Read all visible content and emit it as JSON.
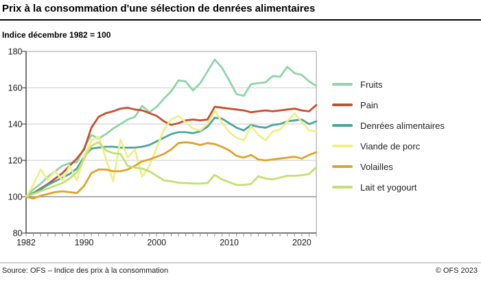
{
  "chart_data": {
    "type": "line",
    "title": "Prix à la consommation d'une sélection de denrées alimentaires",
    "subtitle": "Indice décembre 1982 = 100",
    "x_range": [
      1982,
      2022
    ],
    "x_step_years": 1,
    "x_ticks_labeled": [
      1982,
      1990,
      2000,
      2010,
      2020
    ],
    "ylim": [
      80,
      180
    ],
    "y_ticks": [
      80,
      100,
      120,
      140,
      160,
      180
    ],
    "baseline_value": 100,
    "grid": "horizontal",
    "legend_position": "right",
    "series": [
      {
        "name": "Fruits",
        "color": "#8fd4a8",
        "values": [
          100,
          104,
          107,
          111,
          114,
          117,
          118.5,
          119,
          127,
          134,
          132,
          134.5,
          137.5,
          140,
          142.5,
          144,
          150,
          146.5,
          149.5,
          154,
          158,
          164,
          163.5,
          158.5,
          162.5,
          169,
          175.5,
          171,
          164,
          156.5,
          155.5,
          162,
          162.5,
          163,
          166.5,
          166,
          171.5,
          168,
          167,
          163.5,
          161
        ]
      },
      {
        "name": "Pain",
        "color": "#c4502e",
        "values": [
          100,
          102,
          104.5,
          107,
          110,
          113,
          117,
          121,
          126,
          138,
          144,
          146,
          147,
          148.5,
          149,
          148,
          147.5,
          146,
          144.5,
          141.5,
          139.5,
          140.5,
          142,
          142.5,
          142,
          142.5,
          149.5,
          149,
          148.5,
          148,
          147.5,
          146.5,
          147,
          147.5,
          147,
          147.5,
          148,
          148.5,
          147.5,
          147,
          150.5
        ]
      },
      {
        "name": "Denrées alimentaires",
        "color": "#4ba59d",
        "values": [
          100,
          102,
          104,
          106.5,
          108.5,
          110.5,
          112.5,
          115.5,
          122,
          126.5,
          127,
          127.5,
          127.5,
          127,
          127,
          127,
          127.5,
          128.5,
          130.5,
          132.5,
          134.5,
          135.5,
          135.5,
          135,
          136,
          138.5,
          143.5,
          143,
          140.5,
          138,
          136.5,
          139.5,
          138.5,
          138,
          139.5,
          140,
          141.5,
          142,
          142.5,
          140,
          141.5
        ]
      },
      {
        "name": "Viande de porc",
        "color": "#eef089",
        "values": [
          100,
          106.5,
          115,
          109.5,
          114,
          109,
          117,
          109,
          122,
          131,
          133,
          121,
          108.5,
          131.5,
          121.5,
          126,
          111,
          117,
          127,
          137,
          142.5,
          144.5,
          141,
          137.5,
          136.5,
          140,
          147.5,
          141,
          135.5,
          132.5,
          131,
          139,
          134,
          131,
          136,
          137,
          141.5,
          146,
          141,
          136.5,
          136
        ]
      },
      {
        "name": "Volailles",
        "color": "#dda32b",
        "values": [
          100,
          99,
          100.5,
          101.5,
          102.5,
          103,
          102.5,
          102,
          106,
          113,
          115,
          115,
          114,
          114,
          115,
          117,
          119.5,
          120.5,
          122,
          123.5,
          126,
          129.5,
          130,
          129.5,
          128.5,
          129.5,
          129,
          127.5,
          125.5,
          122.5,
          121.5,
          123,
          120.5,
          120,
          120.5,
          121,
          121.5,
          122,
          121,
          123,
          124.5
        ]
      },
      {
        "name": "Lait et yogourt",
        "color": "#c4df6e",
        "values": [
          100,
          101.5,
          103,
          104.5,
          106,
          107.5,
          110,
          113.5,
          121,
          128,
          130,
          125.5,
          124,
          123.5,
          117,
          116,
          115.5,
          114,
          111.5,
          109,
          108.5,
          107.7,
          107.5,
          107.3,
          107.2,
          107.5,
          112,
          109.5,
          108,
          106.5,
          106.5,
          107,
          111.3,
          110,
          109.5,
          110.5,
          111.5,
          111.5,
          111.8,
          112.5,
          116.3
        ]
      }
    ]
  },
  "footer": {
    "source": "Source: OFS – Indice des prix à la consommation",
    "copyright": "© OFS 2023"
  }
}
